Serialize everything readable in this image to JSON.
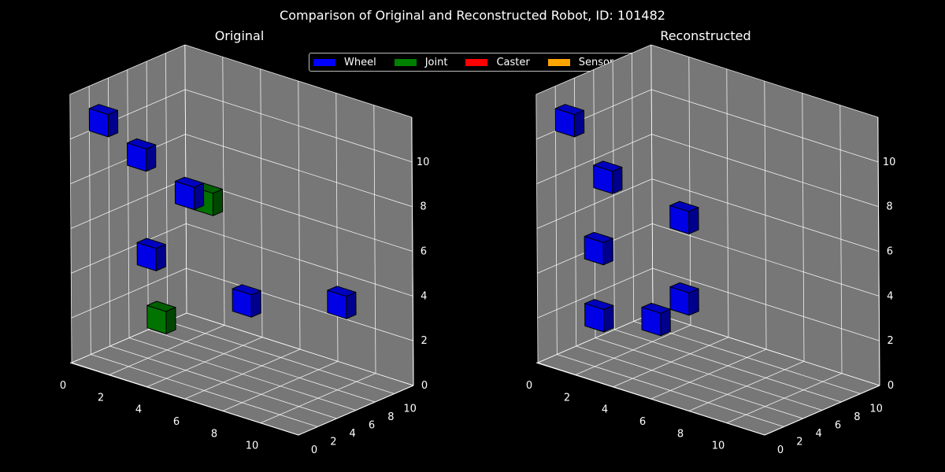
{
  "suptitle": "Comparison of Original and Reconstructed Robot, ID: 101482",
  "legend": {
    "entries": [
      {
        "label": "Wheel",
        "color": "#0000ff"
      },
      {
        "label": "Joint",
        "color": "#008000"
      },
      {
        "label": "Caster",
        "color": "#ff0000"
      },
      {
        "label": "Sensor",
        "color": "#ffa500"
      }
    ]
  },
  "colors": {
    "pane": "#777777",
    "grid": "#ffffff",
    "edge": "#000000"
  },
  "chart_data": [
    {
      "type": "scatter",
      "title": "Original",
      "xlim": [
        0,
        12
      ],
      "ylim": [
        0,
        12
      ],
      "zlim": [
        0,
        12
      ],
      "xticks": [
        "0",
        "2",
        "4",
        "6",
        "8",
        "10"
      ],
      "yticks": [
        "0",
        "2",
        "4",
        "6",
        "8",
        "10"
      ],
      "zticks": [
        "0",
        "2",
        "4",
        "6",
        "8",
        "10"
      ],
      "points": [
        {
          "x": 2,
          "y": 2,
          "z": 9,
          "kind": "Wheel"
        },
        {
          "x": 0,
          "y": 2,
          "z": 10,
          "kind": "Wheel"
        },
        {
          "x": 3,
          "y": 5,
          "z": 7,
          "kind": "Wheel"
        },
        {
          "x": 4,
          "y": 5,
          "z": 7,
          "kind": "Joint"
        },
        {
          "x": 3,
          "y": 1,
          "z": 5,
          "kind": "Wheel"
        },
        {
          "x": 6,
          "y": 5,
          "z": 3,
          "kind": "Wheel"
        },
        {
          "x": 9,
          "y": 9,
          "z": 3,
          "kind": "Wheel"
        },
        {
          "x": 3,
          "y": 2,
          "z": 2,
          "kind": "Joint"
        }
      ]
    },
    {
      "type": "scatter",
      "title": "Reconstructed",
      "xlim": [
        0,
        12
      ],
      "ylim": [
        0,
        12
      ],
      "zlim": [
        0,
        12
      ],
      "xticks": [
        "0",
        "2",
        "4",
        "6",
        "8",
        "10"
      ],
      "yticks": [
        "0",
        "2",
        "4",
        "6",
        "8",
        "10"
      ],
      "zticks": [
        "0",
        "2",
        "4",
        "6",
        "8",
        "10"
      ],
      "points": [
        {
          "x": 0,
          "y": 2,
          "z": 10,
          "kind": "Wheel"
        },
        {
          "x": 2,
          "y": 2,
          "z": 8,
          "kind": "Wheel"
        },
        {
          "x": 4,
          "y": 6,
          "z": 6,
          "kind": "Wheel"
        },
        {
          "x": 2,
          "y": 1,
          "z": 5,
          "kind": "Wheel"
        },
        {
          "x": 5,
          "y": 4,
          "z": 3,
          "kind": "Wheel"
        },
        {
          "x": 4,
          "y": 3,
          "z": 2,
          "kind": "Wheel"
        },
        {
          "x": 2,
          "y": 1,
          "z": 2,
          "kind": "Wheel"
        }
      ]
    }
  ]
}
